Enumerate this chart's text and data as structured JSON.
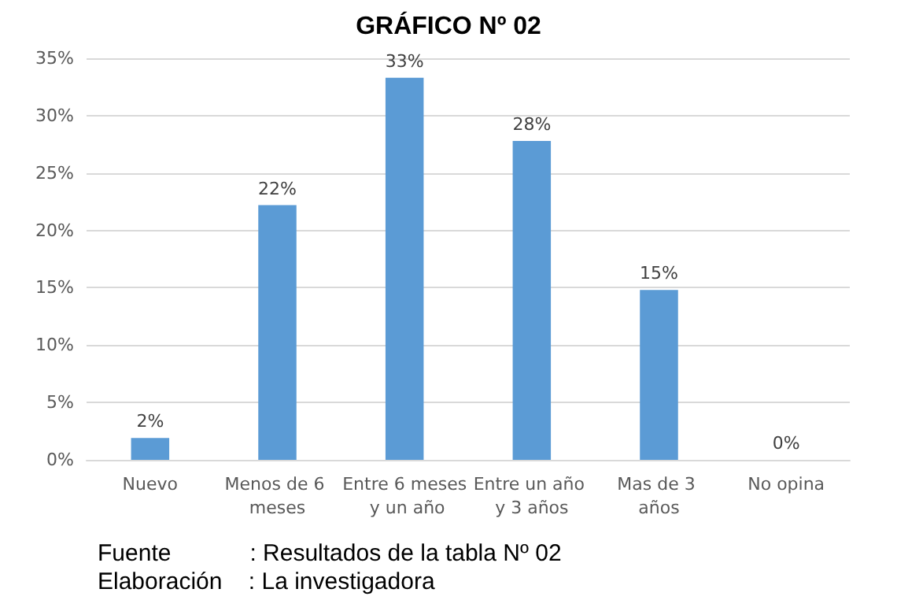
{
  "chart_data": {
    "type": "bar",
    "title": "GRÁFICO Nº 02",
    "categories": [
      "Nuevo",
      "Menos de 6 meses",
      "Entre 6 meses y un año",
      "Entre un año y 3 años",
      "Mas de 3 años",
      "No opina"
    ],
    "values": [
      1.9,
      22.2,
      33.3,
      27.8,
      14.8,
      0
    ],
    "value_labels": [
      "2%",
      "22%",
      "33%",
      "28%",
      "15%",
      "0%"
    ],
    "color": "#5b9bd5",
    "ylim": [
      0,
      35
    ],
    "yticks": [
      {
        "value": 0,
        "label": "0%"
      },
      {
        "value": 5,
        "label": "5%"
      },
      {
        "value": 10,
        "label": "10%"
      },
      {
        "value": 15,
        "label": "15%"
      },
      {
        "value": 20,
        "label": "20%"
      },
      {
        "value": 25,
        "label": "25%"
      },
      {
        "value": 30,
        "label": "30%"
      },
      {
        "value": 35,
        "label": "35%"
      }
    ],
    "grid": "y",
    "annotations": [
      "Fuente            : Resultados de la tabla Nº 02",
      "Elaboración    : La investigadora"
    ]
  }
}
